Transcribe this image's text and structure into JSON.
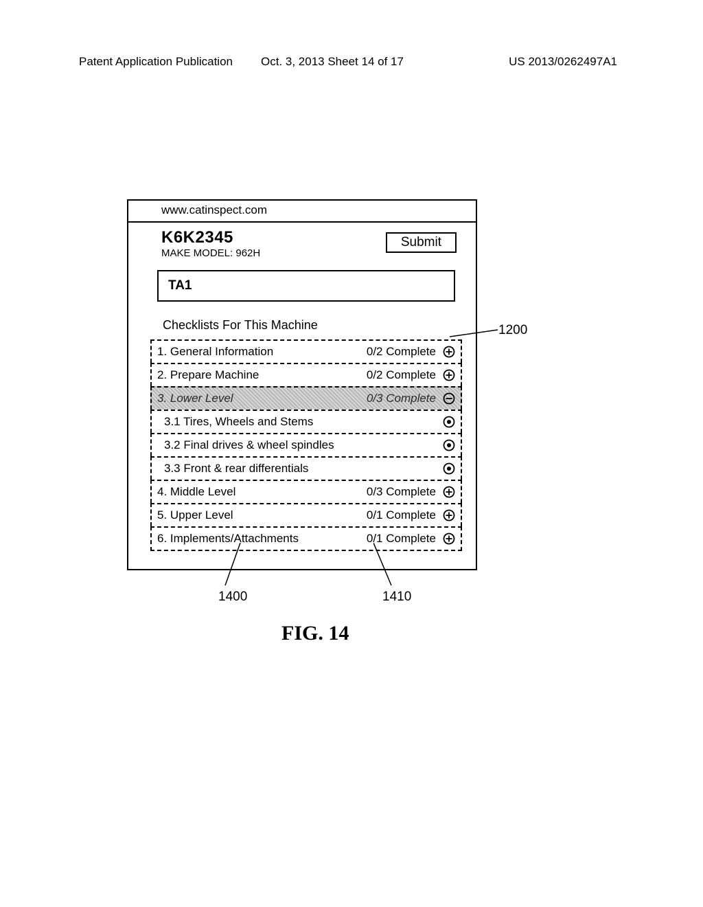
{
  "page_header": {
    "left": "Patent Application Publication",
    "center": "Oct. 3, 2013  Sheet 14 of 17",
    "right": "US 2013/0262497A1"
  },
  "url": "www.catinspect.com",
  "serial": "K6K2345",
  "make_model": "MAKE MODEL: 962H",
  "submit_label": "Submit",
  "ta_label": "TA1",
  "checklist_header": "Checklists For This Machine",
  "rows": [
    {
      "label": "1. General Information",
      "complete": "0/2 Complete",
      "icon": "plus",
      "shaded": false,
      "sub": false
    },
    {
      "label": "2. Prepare Machine",
      "complete": "0/2 Complete",
      "icon": "plus",
      "shaded": false,
      "sub": false
    },
    {
      "label": "3. Lower Level",
      "complete": "0/3 Complete",
      "icon": "minus",
      "shaded": true,
      "sub": false
    },
    {
      "label": "3.1  Tires, Wheels and Stems",
      "complete": "",
      "icon": "dot",
      "shaded": false,
      "sub": true
    },
    {
      "label": "3.2  Final drives & wheel spindles",
      "complete": "",
      "icon": "dot",
      "shaded": false,
      "sub": true
    },
    {
      "label": "3.3  Front & rear differentials",
      "complete": "",
      "icon": "dot",
      "shaded": false,
      "sub": true
    },
    {
      "label": "4. Middle Level",
      "complete": "0/3 Complete",
      "icon": "plus",
      "shaded": false,
      "sub": false
    },
    {
      "label": "5. Upper Level",
      "complete": "0/1 Complete",
      "icon": "plus",
      "shaded": false,
      "sub": false
    },
    {
      "label": "6. Implements/Attachments",
      "complete": "0/1 Complete",
      "icon": "plus",
      "shaded": false,
      "sub": false
    }
  ],
  "callouts": {
    "ref_1200": "1200",
    "ref_1400": "1400",
    "ref_1410": "1410"
  },
  "figure_label": "FIG. 14",
  "colors": {
    "stroke": "#000000",
    "background": "#ffffff",
    "shaded_a": "#b7b7b7",
    "shaded_b": "#d8d8d8"
  }
}
